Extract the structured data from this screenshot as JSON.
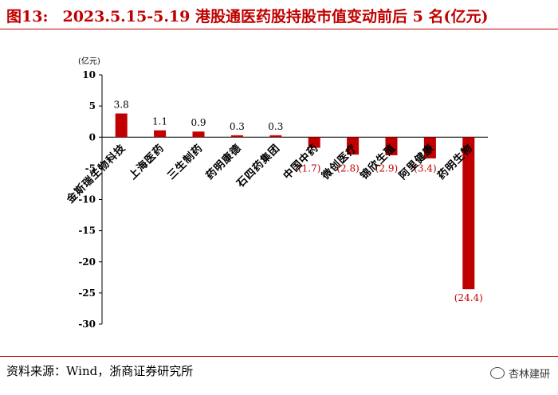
{
  "header": {
    "figure_number": "图13:",
    "title": "2023.5.15-5.19 港股通医药股持股市值变动前后 5 名(亿元)"
  },
  "footer": {
    "source": "资料来源：Wind，浙商证券研究所",
    "watermark": "杏林建研",
    "watermark_icon": "wechat-icon"
  },
  "colors": {
    "bar": "#c00000",
    "negative_label": "#c00000",
    "title": "#c00000"
  },
  "chart_data": {
    "type": "bar",
    "unit_label": "(亿元)",
    "categories": [
      "金斯瑞生物科技",
      "上海医药",
      "三生制药",
      "药明康德",
      "石四药集团",
      "中国中药",
      "微创医疗",
      "锦欣生殖",
      "阿里健康",
      "药明生物"
    ],
    "values": [
      3.8,
      1.1,
      0.9,
      0.3,
      0.3,
      -1.7,
      -2.8,
      -2.9,
      -3.4,
      -24.4
    ],
    "data_labels": [
      "3.8",
      "1.1",
      "0.9",
      "0.3",
      "0.3",
      "(1.7)",
      "(2.8)",
      "(2.9)",
      "(3.4)",
      "(24.4)"
    ],
    "ylim": [
      -30,
      10
    ],
    "yticks": [
      10,
      5,
      0,
      -5,
      -10,
      -15,
      -20,
      -25,
      -30
    ],
    "grid": false
  }
}
